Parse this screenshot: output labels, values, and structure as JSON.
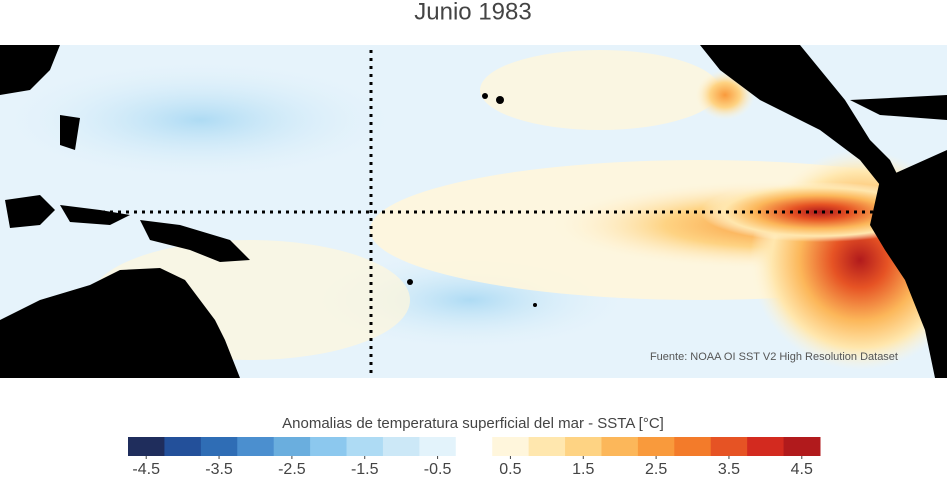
{
  "title": "Junio 1983",
  "source": "Fuente: NOAA OI SST V2 High Resolution Dataset",
  "colorbar": {
    "label": "Anomalias de temperatura superficial del mar - SSTA  [°C]",
    "lim": [
      -4.75,
      4.75
    ],
    "ticks": [
      -4.5,
      -3.5,
      -2.5,
      -1.5,
      -0.5,
      0.5,
      1.5,
      2.5,
      3.5,
      4.5
    ],
    "colors": [
      "#1f2d5c",
      "#23509a",
      "#2f6db5",
      "#4b8fcf",
      "#6aaede",
      "#8cc8ee",
      "#aedbf4",
      "#cce8f7",
      "#e3f3fb",
      "#ffffff",
      "#fff6dc",
      "#ffe7ae",
      "#fed383",
      "#fcb75a",
      "#f99a3c",
      "#f37b2a",
      "#e65324",
      "#d32a1f",
      "#b11a1c"
    ]
  }
}
